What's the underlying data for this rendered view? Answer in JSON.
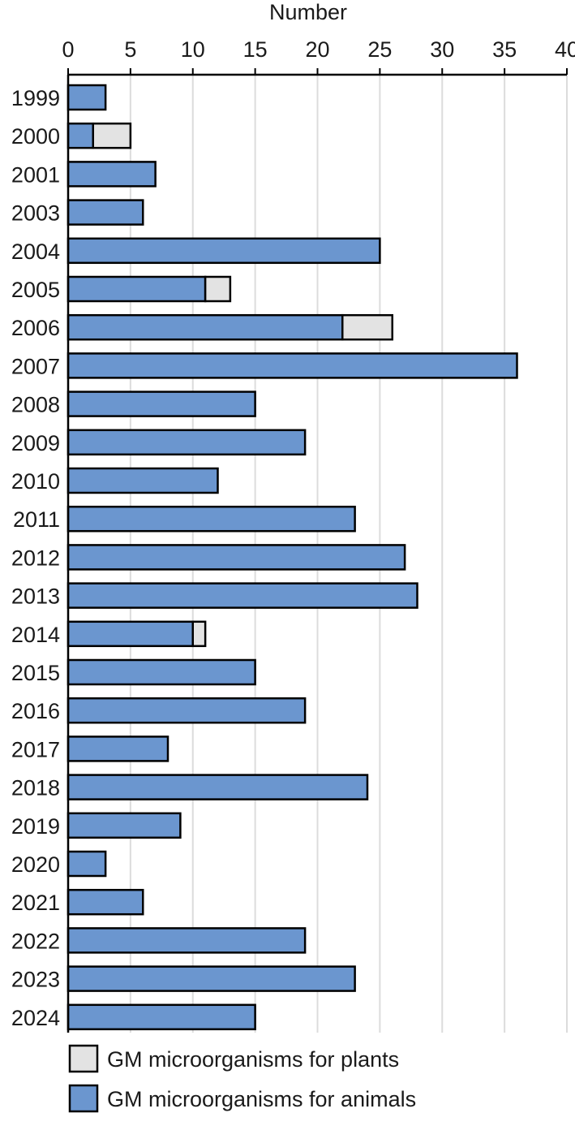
{
  "chart_data": {
    "type": "bar",
    "orientation": "horizontal",
    "stacked": true,
    "xlabel": "Number",
    "xlim": [
      0,
      40
    ],
    "x_ticks": [
      0,
      5,
      10,
      15,
      20,
      25,
      30,
      35,
      40
    ],
    "grid": "vertical",
    "categories": [
      "1999",
      "2000",
      "2001",
      "2003",
      "2004",
      "2005",
      "2006",
      "2007",
      "2008",
      "2009",
      "2010",
      "2011",
      "2012",
      "2013",
      "2014",
      "2015",
      "2016",
      "2017",
      "2018",
      "2019",
      "2020",
      "2021",
      "2022",
      "2023",
      "2024"
    ],
    "series": [
      {
        "name": "GM microorganisms for animals",
        "color": "#6b96cf",
        "values": [
          3,
          2,
          7,
          6,
          25,
          11,
          22,
          36,
          15,
          19,
          12,
          23,
          27,
          28,
          10,
          15,
          19,
          8,
          24,
          9,
          3,
          6,
          19,
          23,
          15
        ]
      },
      {
        "name": "GM microorganisms for plants",
        "color": "#e3e3e3",
        "values": [
          0,
          3,
          0,
          0,
          0,
          2,
          4,
          0,
          0,
          0,
          0,
          0,
          0,
          0,
          1,
          0,
          0,
          0,
          0,
          0,
          0,
          0,
          0,
          0,
          0
        ]
      }
    ],
    "legend": {
      "placement": "bottom",
      "order": [
        "GM microorganisms for plants",
        "GM microorganisms for animals"
      ]
    }
  }
}
